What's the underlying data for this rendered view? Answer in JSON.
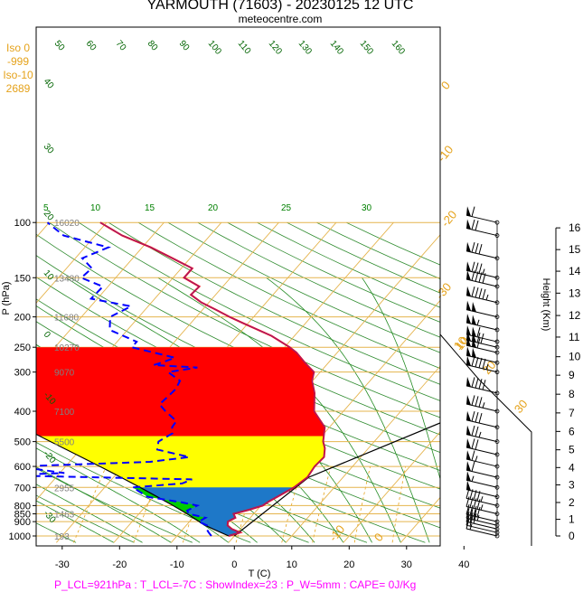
{
  "header": {
    "title": "YARMOUTH (71603) - 20230125 12 UTC",
    "site": "meteocentre.com"
  },
  "iso_box": [
    "Iso 0",
    "-999",
    "Iso-10",
    "2689"
  ],
  "footer": "P_LCL=921hPa : T_LCL=-7C : ShowIndex=23 : P_W=5mm : CAPE= 0J/Kg",
  "chart_data": {
    "type": "line",
    "title": "YARMOUTH (71603) - 20230125 12 UTC",
    "xlabel": "T (C)",
    "ylabel": "P (hPa)",
    "y2label": "Height (Km)",
    "x_ticks": [
      -30,
      -20,
      -10,
      0,
      10,
      20,
      30,
      40
    ],
    "xlim": [
      -33,
      46
    ],
    "ylim": [
      1040,
      100
    ],
    "y_scale": "log",
    "pressure_ticks": [
      100,
      150,
      200,
      250,
      300,
      400,
      500,
      600,
      700,
      800,
      850,
      900,
      1000
    ],
    "height_ticks_km": [
      0,
      1,
      2,
      3,
      4,
      5,
      6,
      7,
      8,
      9,
      10,
      11,
      12,
      13,
      14,
      15,
      16
    ],
    "geopotential_labels": [
      {
        "p": 100,
        "label": "16020"
      },
      {
        "p": 150,
        "label": "13480"
      },
      {
        "p": 200,
        "label": "11680"
      },
      {
        "p": 250,
        "label": "10270"
      },
      {
        "p": 300,
        "label": "9070"
      },
      {
        "p": 400,
        "label": "7100"
      },
      {
        "p": 500,
        "label": "5500"
      },
      {
        "p": 700,
        "label": "2955"
      },
      {
        "p": 850,
        "label": "1463"
      },
      {
        "p": 1000,
        "label": "193"
      }
    ],
    "dry_adiabat_labels": [
      "50",
      "60",
      "70",
      "80",
      "90",
      "100",
      "110",
      "120",
      "130",
      "140",
      "150",
      "160",
      "40",
      "30",
      "20",
      "10",
      "0",
      "-10",
      "-20",
      "-30"
    ],
    "moist_adiabat_labels": [
      "5",
      "10",
      "15",
      "20",
      "25",
      "30"
    ],
    "mixing_ratio_labels": [
      "-10",
      "0",
      "10",
      "20",
      "30"
    ],
    "isotherm_labels": [
      "-30",
      "-20",
      "-10",
      "0",
      "10"
    ],
    "temperature_profile": [
      {
        "p": 1000,
        "t": -1.0
      },
      {
        "p": 975,
        "t": 0.5
      },
      {
        "p": 950,
        "t": -1.5
      },
      {
        "p": 925,
        "t": -2.8
      },
      {
        "p": 900,
        "t": -3.3
      },
      {
        "p": 875,
        "t": -2.6
      },
      {
        "p": 850,
        "t": -3.5
      },
      {
        "p": 825,
        "t": -1.4
      },
      {
        "p": 800,
        "t": 0.3
      },
      {
        "p": 775,
        "t": 0.8
      },
      {
        "p": 750,
        "t": 1.5
      },
      {
        "p": 700,
        "t": 3.0
      },
      {
        "p": 650,
        "t": 3.8
      },
      {
        "p": 600,
        "t": 3.4
      },
      {
        "p": 560,
        "t": 3.6
      },
      {
        "p": 525,
        "t": 2.4
      },
      {
        "p": 500,
        "t": 1.1
      },
      {
        "p": 450,
        "t": -0.8
      },
      {
        "p": 400,
        "t": -5.1
      },
      {
        "p": 350,
        "t": -7.8
      },
      {
        "p": 320,
        "t": -10.1
      },
      {
        "p": 300,
        "t": -11.1
      },
      {
        "p": 280,
        "t": -14.1
      },
      {
        "p": 260,
        "t": -17.1
      },
      {
        "p": 250,
        "t": -19.1
      },
      {
        "p": 230,
        "t": -24.0
      },
      {
        "p": 210,
        "t": -30.7
      },
      {
        "p": 200,
        "t": -34.2
      },
      {
        "p": 190,
        "t": -37.6
      },
      {
        "p": 180,
        "t": -41.3
      },
      {
        "p": 170,
        "t": -44.3
      },
      {
        "p": 160,
        "t": -44.1
      },
      {
        "p": 150,
        "t": -48.1
      },
      {
        "p": 140,
        "t": -48.1
      },
      {
        "p": 130,
        "t": -53.1
      },
      {
        "p": 120,
        "t": -58.5
      },
      {
        "p": 110,
        "t": -65.3
      },
      {
        "p": 100,
        "t": -71.1
      }
    ],
    "dewpoint_profile": [
      {
        "p": 1000,
        "t": -4.0
      },
      {
        "p": 975,
        "t": -5.0
      },
      {
        "p": 950,
        "t": -5.9
      },
      {
        "p": 925,
        "t": -6.4
      },
      {
        "p": 900,
        "t": -8.4
      },
      {
        "p": 875,
        "t": -7.8
      },
      {
        "p": 850,
        "t": -11.3
      },
      {
        "p": 830,
        "t": -12.1
      },
      {
        "p": 800,
        "t": -11.1
      },
      {
        "p": 780,
        "t": -14.5
      },
      {
        "p": 750,
        "t": -21.1
      },
      {
        "p": 700,
        "t": -25.1
      },
      {
        "p": 680,
        "t": -17.1
      },
      {
        "p": 660,
        "t": -16.0
      },
      {
        "p": 640,
        "t": -50.3
      },
      {
        "p": 630,
        "t": -39.2
      },
      {
        "p": 600,
        "t": -48.3
      },
      {
        "p": 580,
        "t": -26.0
      },
      {
        "p": 560,
        "t": -19.9
      },
      {
        "p": 530,
        "t": -26.6
      },
      {
        "p": 500,
        "t": -27.6
      },
      {
        "p": 470,
        "t": -26.4
      },
      {
        "p": 450,
        "t": -27.4
      },
      {
        "p": 430,
        "t": -27.6
      },
      {
        "p": 400,
        "t": -31.0
      },
      {
        "p": 380,
        "t": -33.1
      },
      {
        "p": 360,
        "t": -32.8
      },
      {
        "p": 340,
        "t": -32.6
      },
      {
        "p": 320,
        "t": -33.1
      },
      {
        "p": 300,
        "t": -36.5
      },
      {
        "p": 290,
        "t": -32.1
      },
      {
        "p": 285,
        "t": -40.1
      },
      {
        "p": 280,
        "t": -39.1
      },
      {
        "p": 270,
        "t": -37.5
      },
      {
        "p": 250,
        "t": -46.6
      },
      {
        "p": 240,
        "t": -46.6
      },
      {
        "p": 220,
        "t": -53.1
      },
      {
        "p": 200,
        "t": -55.0
      },
      {
        "p": 185,
        "t": -53.0
      },
      {
        "p": 175,
        "t": -61.1
      },
      {
        "p": 160,
        "t": -60.9
      },
      {
        "p": 150,
        "t": -66.0
      },
      {
        "p": 140,
        "t": -65.6
      },
      {
        "p": 130,
        "t": -68.8
      },
      {
        "p": 120,
        "t": -65.9
      },
      {
        "p": 110,
        "t": -75.5
      },
      {
        "p": 100,
        "t": -80.3
      }
    ],
    "parcel_profile": [
      {
        "p": 1000,
        "t": -1.0
      },
      {
        "p": 950,
        "t": -4.8
      },
      {
        "p": 921,
        "t": -7.0
      },
      {
        "p": 900,
        "t": -8.3
      },
      {
        "p": 850,
        "t": -11.6
      },
      {
        "p": 800,
        "t": -15.3
      },
      {
        "p": 750,
        "t": -19.4
      },
      {
        "p": 700,
        "t": -23.8
      },
      {
        "p": 650,
        "t": -28.7
      },
      {
        "p": 600,
        "t": -34.0
      },
      {
        "p": 550,
        "t": -39.9
      },
      {
        "p": 500,
        "t": -46.4
      },
      {
        "p": 450,
        "t": -53.5
      },
      {
        "p": 400,
        "t": -61.4
      },
      {
        "p": 350,
        "t": -70.5
      },
      {
        "p": 300,
        "t": -80.5
      },
      {
        "p": 250,
        "t": -90.6
      }
    ],
    "height_p_map": [
      1000,
      885,
      782,
      687,
      605,
      531,
      464,
      405,
      353,
      307,
      268,
      232,
      198,
      168,
      143,
      122,
      104
    ],
    "wind_levels": [
      1000,
      975,
      950,
      925,
      900,
      850,
      800,
      750,
      700,
      650,
      600,
      550,
      500,
      450,
      400,
      350,
      300,
      280,
      260,
      250,
      240,
      220,
      200,
      180,
      160,
      150,
      130,
      110,
      100
    ],
    "wind_speeds_kt": [
      15,
      20,
      30,
      35,
      40,
      45,
      45,
      50,
      55,
      60,
      65,
      70,
      75,
      80,
      85,
      90,
      95,
      100,
      110,
      120,
      110,
      105,
      100,
      95,
      90,
      85,
      80,
      70,
      60
    ],
    "legend": [],
    "grid": true,
    "colors": {
      "temperature": "#ff0000",
      "dewpoint": "#0000ff",
      "parcel": "#000000",
      "isobar": "#e5b44d",
      "isotherm": "#e5b44d",
      "dry_adiabat": "#2e8b2e",
      "moist_adiabat": "#228b22",
      "mixing_ratio": "#e5a21a",
      "cape": "#ff0000",
      "cin": "#1e78c8",
      "positive_area": "#ffff00",
      "low_area": "#00cc00"
    }
  }
}
